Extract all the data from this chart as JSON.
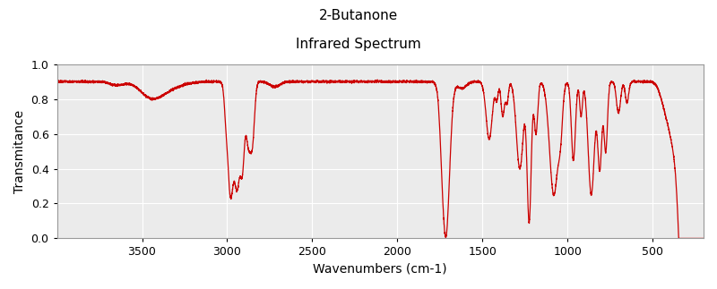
{
  "title1": "2-Butanone",
  "title2": "Infrared Spectrum",
  "xlabel": "Wavenumbers (cm-1)",
  "ylabel": "Transmitance",
  "xlim": [
    4000,
    200
  ],
  "ylim": [
    0.0,
    1.0
  ],
  "xticks": [
    3500,
    3000,
    2500,
    2000,
    1500,
    1000,
    500
  ],
  "yticks": [
    0.0,
    0.2,
    0.4,
    0.6,
    0.8,
    1.0
  ],
  "line_color": "#cc0000",
  "background_color": "#ffffff",
  "plot_bg_color": "#ebebeb",
  "grid_color": "#ffffff",
  "title1_fontsize": 11,
  "title2_fontsize": 11,
  "xlabel_fontsize": 10,
  "ylabel_fontsize": 10
}
